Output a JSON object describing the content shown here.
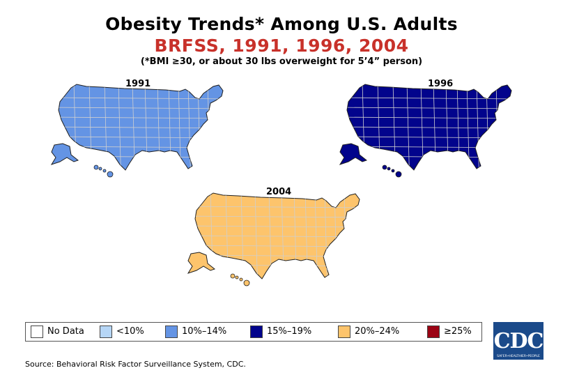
{
  "title": "Obesity Trends* Among U.S. Adults",
  "subtitle": "BRFSS, 1991, 1996, 2004",
  "note": "(*BMI ≥30, or about 30 lbs overweight for 5’4” person)",
  "colors": {
    "no_data": "#ffffff",
    "lt10": "#b6d6f6",
    "p10_14": "#6494e4",
    "p15_19": "#02048c",
    "p20_24": "#fdc46c",
    "ge25": "#9b0314",
    "state_border": "#1e1e1e"
  },
  "maps": [
    {
      "year": "1991",
      "base_category": "p10_14"
    },
    {
      "year": "1996",
      "base_category": "p15_19"
    },
    {
      "year": "2004",
      "base_category": "p20_24"
    }
  ],
  "legend": [
    {
      "key": "no_data",
      "label": "No Data"
    },
    {
      "key": "lt10",
      "label": "<10%"
    },
    {
      "key": "p10_14",
      "label": "10%–14%"
    },
    {
      "key": "p15_19",
      "label": "15%–19%"
    },
    {
      "key": "p20_24",
      "label": "20%–24%"
    },
    {
      "key": "ge25",
      "label": "≥25%"
    }
  ],
  "logo": {
    "text": "CDC",
    "tagline": "SAFER•HEALTHIER•PEOPLE"
  },
  "source": "Source: Behavioral Risk Factor Surveillance System, CDC."
}
